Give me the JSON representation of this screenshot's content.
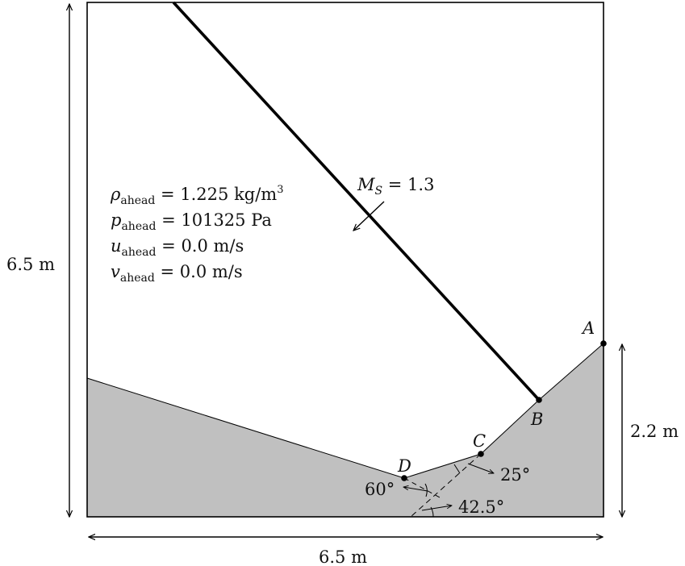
{
  "dimensions": {
    "width_label": "6.5 m",
    "height_label": "6.5 m",
    "step_height_label": "2.2 m"
  },
  "points": {
    "a": "A",
    "b": "B",
    "c": "C",
    "d": "D"
  },
  "angles": {
    "angle_1": "25°",
    "angle_2": "60°",
    "angle_3": "42.5°"
  },
  "shock": {
    "var": "M",
    "sub": "S",
    "value": " = 1.3"
  },
  "ahead_conditions": [
    {
      "sym": "ρ",
      "sub": "ahead",
      "rhs": " = 1.225 kg/m",
      "sup": "3"
    },
    {
      "sym": "p",
      "sub": "ahead",
      "rhs": " = 101325 Pa",
      "sup": ""
    },
    {
      "sym": "u",
      "sub": "ahead",
      "rhs": " = 0.0 m/s",
      "sup": ""
    },
    {
      "sym": "v",
      "sub": "ahead",
      "rhs": " = 0.0 m/s",
      "sup": ""
    }
  ],
  "colors": {
    "wall_fill": "#c0c0c0",
    "line": "#000000"
  }
}
